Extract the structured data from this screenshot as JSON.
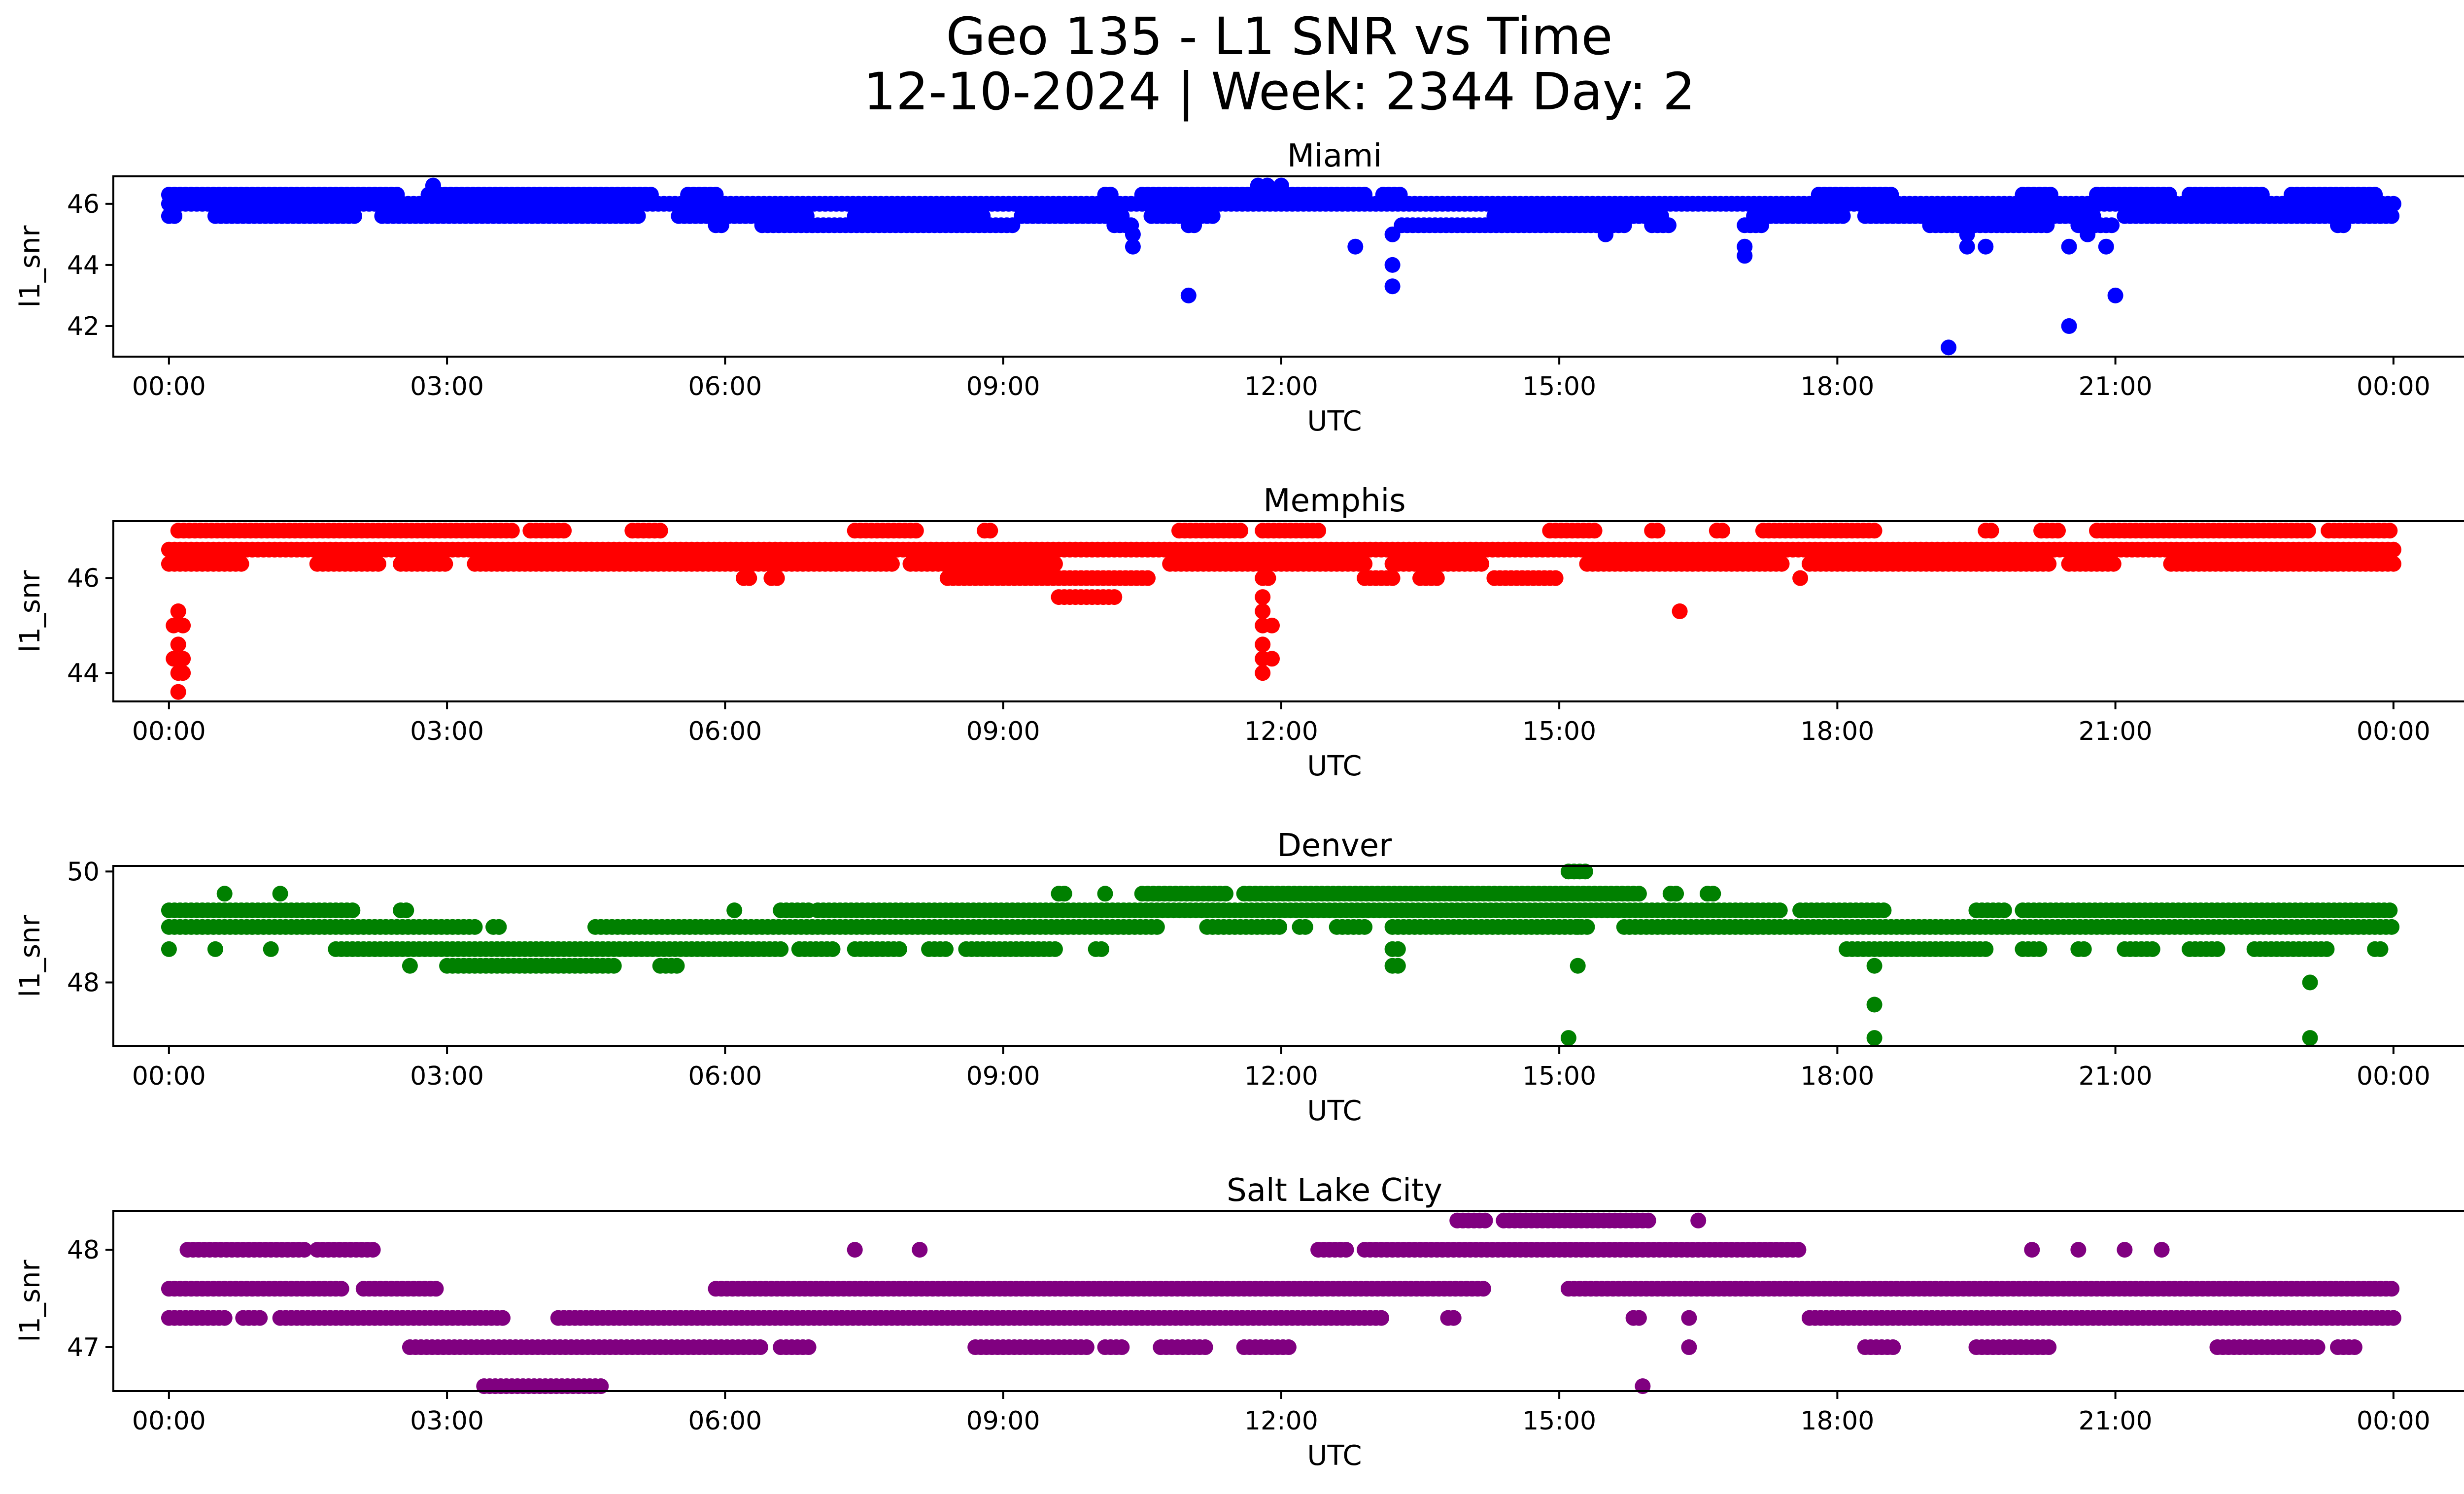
{
  "title_line1": "Geo 135 - L1 SNR vs Time",
  "title_line2": "12-10-2024 | Week: 2344 Day: 2",
  "chart_data": [
    {
      "type": "scatter",
      "title": "Miami",
      "xlabel": "UTC",
      "ylabel": "l1_snr",
      "color": "#0000ff",
      "x_ticks": [
        "00:00",
        "03:00",
        "06:00",
        "09:00",
        "12:00",
        "15:00",
        "18:00",
        "21:00",
        "00:00"
      ],
      "x_range_hours": [
        -0.6,
        25.75
      ],
      "y_ticks": [
        42,
        44,
        46
      ],
      "ylim": [
        41.0,
        46.9
      ],
      "levels": [
        {
          "y": 46.3,
          "x": [
            [
              0.0,
              2.5
            ],
            [
              2.8,
              5.2
            ],
            [
              5.6,
              5.9
            ],
            [
              10.1,
              10.2
            ],
            [
              10.5,
              12.9
            ],
            [
              13.1,
              13.3
            ],
            [
              17.8,
              18.6
            ],
            [
              20.0,
              20.3
            ],
            [
              20.8,
              21.6
            ],
            [
              21.8,
              22.6
            ],
            [
              22.9,
              23.8
            ]
          ]
        },
        {
          "y": 46.0,
          "x": [
            [
              0.0,
              24.0
            ]
          ]
        },
        {
          "y": 45.6,
          "x": [
            [
              0.0,
              0.1
            ],
            [
              0.5,
              2.0
            ],
            [
              2.3,
              5.1
            ],
            [
              5.5,
              6.9
            ],
            [
              7.4,
              8.8
            ],
            [
              9.2,
              10.3
            ],
            [
              10.6,
              11.3
            ],
            [
              14.3,
              16.1
            ],
            [
              17.1,
              18.1
            ],
            [
              18.3,
              20.8
            ],
            [
              21.1,
              24.0
            ]
          ]
        },
        {
          "y": 45.3,
          "x": [
            [
              5.9,
              6.0
            ],
            [
              6.4,
              9.1
            ],
            [
              10.2,
              10.4
            ],
            [
              11.0,
              11.1
            ],
            [
              13.3,
              15.7
            ],
            [
              16.0,
              16.2
            ],
            [
              17.0,
              17.2
            ],
            [
              19.0,
              20.3
            ],
            [
              20.6,
              21.0
            ],
            [
              23.4,
              23.5
            ]
          ]
        }
      ],
      "points": [
        [
          2.85,
          46.6
        ],
        [
          11.75,
          46.6
        ],
        [
          11.85,
          46.6
        ],
        [
          12.0,
          46.6
        ],
        [
          15.5,
          45.0
        ],
        [
          19.4,
          45.0
        ],
        [
          20.7,
          45.0
        ],
        [
          13.2,
          45.0
        ],
        [
          10.4,
          45.0
        ],
        [
          10.4,
          44.6
        ],
        [
          12.8,
          44.6
        ],
        [
          17.0,
          44.6
        ],
        [
          19.4,
          44.6
        ],
        [
          19.6,
          44.6
        ],
        [
          20.5,
          44.6
        ],
        [
          20.9,
          44.6
        ],
        [
          13.2,
          44.0
        ],
        [
          17.0,
          44.3
        ],
        [
          13.2,
          43.3
        ],
        [
          11.0,
          43.0
        ],
        [
          21.0,
          43.0
        ],
        [
          20.5,
          42.0
        ],
        [
          19.2,
          41.3
        ]
      ]
    },
    {
      "type": "scatter",
      "title": "Memphis",
      "xlabel": "UTC",
      "ylabel": "l1_snr",
      "color": "#ff0000",
      "x_ticks": [
        "00:00",
        "03:00",
        "06:00",
        "09:00",
        "12:00",
        "15:00",
        "18:00",
        "21:00",
        "00:00"
      ],
      "x_range_hours": [
        -0.6,
        25.75
      ],
      "y_ticks": [
        44,
        46
      ],
      "ylim": [
        43.4,
        47.2
      ],
      "levels": [
        {
          "y": 47.0,
          "x": [
            [
              0.1,
              0.35
            ],
            [
              0.4,
              3.7
            ],
            [
              3.9,
              4.3
            ],
            [
              5.0,
              5.3
            ],
            [
              7.4,
              8.1
            ],
            [
              8.8,
              8.9
            ],
            [
              10.9,
              11.6
            ],
            [
              11.8,
              12.4
            ],
            [
              14.9,
              15.4
            ],
            [
              16.0,
              16.1
            ],
            [
              16.7,
              16.8
            ],
            [
              17.2,
              18.4
            ],
            [
              19.6,
              19.7
            ],
            [
              20.2,
              20.4
            ],
            [
              20.8,
              23.1
            ],
            [
              23.3,
              24.0
            ]
          ]
        },
        {
          "y": 46.6,
          "x": [
            [
              0.0,
              24.0
            ]
          ]
        },
        {
          "y": 46.3,
          "x": [
            [
              0.0,
              0.8
            ],
            [
              1.6,
              2.3
            ],
            [
              2.5,
              3.0
            ],
            [
              3.3,
              7.8
            ],
            [
              8.0,
              9.6
            ],
            [
              10.8,
              12.9
            ],
            [
              13.2,
              14.2
            ],
            [
              15.3,
              17.4
            ],
            [
              17.7,
              20.3
            ],
            [
              20.5,
              21.0
            ],
            [
              21.6,
              24.0
            ]
          ]
        },
        {
          "y": 46.0,
          "x": [
            [
              6.2,
              6.3
            ],
            [
              6.5,
              6.6
            ],
            [
              8.4,
              10.6
            ],
            [
              11.8,
              11.9
            ],
            [
              12.9,
              13.2
            ],
            [
              13.5,
              13.7
            ],
            [
              14.3,
              15.0
            ]
          ]
        },
        {
          "y": 45.6,
          "x": [
            [
              9.6,
              10.2
            ]
          ]
        }
      ],
      "points": [
        [
          0.1,
          45.3
        ],
        [
          0.05,
          45.0
        ],
        [
          0.15,
          45.0
        ],
        [
          0.1,
          44.6
        ],
        [
          0.05,
          44.3
        ],
        [
          0.15,
          44.3
        ],
        [
          0.1,
          44.0
        ],
        [
          0.15,
          44.0
        ],
        [
          0.1,
          43.6
        ],
        [
          11.8,
          45.6
        ],
        [
          11.8,
          45.3
        ],
        [
          11.8,
          45.0
        ],
        [
          11.9,
          45.0
        ],
        [
          11.8,
          44.6
        ],
        [
          11.8,
          44.3
        ],
        [
          11.9,
          44.3
        ],
        [
          11.8,
          44.0
        ],
        [
          16.3,
          45.3
        ],
        [
          17.6,
          46.0
        ]
      ]
    },
    {
      "type": "scatter",
      "title": "Denver",
      "xlabel": "UTC",
      "ylabel": "l1_snr",
      "color": "#008000",
      "x_ticks": [
        "00:00",
        "03:00",
        "06:00",
        "09:00",
        "12:00",
        "15:00",
        "18:00",
        "21:00",
        "00:00"
      ],
      "x_range_hours": [
        -0.6,
        25.75
      ],
      "y_ticks": [
        48,
        50
      ],
      "ylim": [
        46.85,
        50.1
      ],
      "levels": [
        {
          "y": 50.0,
          "x": [
            [
              15.1,
              15.3
            ]
          ]
        },
        {
          "y": 49.6,
          "x": [
            [
              0.6,
              0.65
            ],
            [
              1.2,
              1.25
            ],
            [
              9.6,
              9.7
            ],
            [
              10.1,
              10.15
            ],
            [
              10.5,
              11.4
            ],
            [
              11.6,
              15.9
            ],
            [
              16.2,
              16.3
            ],
            [
              16.6,
              16.7
            ]
          ]
        },
        {
          "y": 49.3,
          "x": [
            [
              0.0,
              2.0
            ],
            [
              2.5,
              2.6
            ],
            [
              6.1,
              6.15
            ],
            [
              6.6,
              6.9
            ],
            [
              7.0,
              17.4
            ],
            [
              17.6,
              18.5
            ],
            [
              19.5,
              19.8
            ],
            [
              20.0,
              24.0
            ]
          ]
        },
        {
          "y": 49.0,
          "x": [
            [
              0.0,
              3.3
            ],
            [
              3.5,
              3.6
            ],
            [
              4.6,
              10.7
            ],
            [
              11.2,
              12.0
            ],
            [
              12.2,
              12.3
            ],
            [
              12.6,
              12.9
            ],
            [
              13.2,
              15.3
            ],
            [
              15.7,
              24.0
            ]
          ]
        },
        {
          "y": 48.6,
          "x": [
            [
              0.0,
              0.05
            ],
            [
              0.5,
              0.55
            ],
            [
              1.1,
              1.15
            ],
            [
              1.8,
              6.6
            ],
            [
              6.8,
              7.2
            ],
            [
              7.4,
              7.9
            ],
            [
              8.2,
              8.4
            ],
            [
              8.6,
              9.6
            ],
            [
              10.0,
              10.1
            ],
            [
              13.2,
              13.3
            ],
            [
              18.1,
              19.6
            ],
            [
              20.0,
              20.2
            ],
            [
              20.6,
              20.7
            ],
            [
              21.1,
              21.4
            ],
            [
              21.8,
              22.1
            ],
            [
              22.5,
              23.3
            ],
            [
              23.8,
              23.9
            ]
          ]
        },
        {
          "y": 48.3,
          "x": [
            [
              2.6,
              2.65
            ],
            [
              3.0,
              4.8
            ],
            [
              5.3,
              5.5
            ],
            [
              13.2,
              13.3
            ],
            [
              18.4,
              18.45
            ]
          ]
        }
      ],
      "points": [
        [
          15.2,
          48.3
        ],
        [
          15.2,
          49.0
        ],
        [
          18.4,
          47.6
        ],
        [
          23.1,
          48.0
        ],
        [
          15.1,
          47.0
        ],
        [
          18.4,
          47.0
        ],
        [
          23.1,
          47.0
        ]
      ]
    },
    {
      "type": "scatter",
      "title": "Salt Lake City",
      "xlabel": "UTC",
      "ylabel": "l1_snr",
      "color": "#800080",
      "x_ticks": [
        "00:00",
        "03:00",
        "06:00",
        "09:00",
        "12:00",
        "15:00",
        "18:00",
        "21:00",
        "00:00"
      ],
      "x_range_hours": [
        -0.6,
        25.75
      ],
      "y_ticks": [
        47,
        48
      ],
      "ylim": [
        46.55,
        48.4
      ],
      "levels": [
        {
          "y": 48.3,
          "x": [
            [
              13.9,
              14.2
            ],
            [
              14.4,
              16.0
            ],
            [
              16.5,
              16.55
            ]
          ]
        },
        {
          "y": 48.0,
          "x": [
            [
              0.2,
              1.5
            ],
            [
              1.6,
              2.2
            ],
            [
              7.4,
              7.45
            ],
            [
              8.1,
              8.15
            ],
            [
              12.4,
              12.7
            ],
            [
              12.9,
              17.6
            ],
            [
              20.1,
              20.15
            ],
            [
              20.6,
              20.65
            ],
            [
              21.1,
              21.15
            ],
            [
              21.5,
              21.55
            ]
          ]
        },
        {
          "y": 47.6,
          "x": [
            [
              0.0,
              1.9
            ],
            [
              2.1,
              2.9
            ],
            [
              5.9,
              14.2
            ],
            [
              15.1,
              24.0
            ]
          ]
        },
        {
          "y": 47.3,
          "x": [
            [
              0.0,
              0.6
            ],
            [
              0.8,
              1.0
            ],
            [
              1.2,
              3.6
            ],
            [
              4.2,
              13.1
            ],
            [
              13.8,
              13.9
            ],
            [
              15.8,
              15.9
            ],
            [
              16.4,
              16.45
            ],
            [
              17.7,
              24.0
            ]
          ]
        },
        {
          "y": 47.0,
          "x": [
            [
              2.6,
              6.4
            ],
            [
              6.6,
              6.9
            ],
            [
              8.7,
              9.9
            ],
            [
              10.1,
              10.3
            ],
            [
              10.7,
              11.2
            ],
            [
              11.6,
              12.1
            ],
            [
              16.4,
              16.45
            ],
            [
              18.3,
              18.6
            ],
            [
              19.5,
              20.3
            ],
            [
              22.1,
              23.2
            ],
            [
              23.4,
              23.6
            ]
          ]
        },
        {
          "y": 46.6,
          "x": [
            [
              3.4,
              4.7
            ]
          ]
        }
      ],
      "points": [
        [
          15.9,
          46.6
        ]
      ]
    }
  ]
}
